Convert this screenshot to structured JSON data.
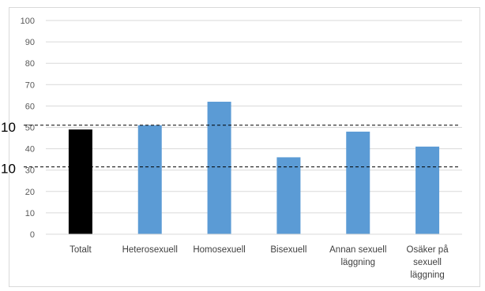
{
  "chart_data": {
    "type": "bar",
    "categories": [
      [
        "Totalt"
      ],
      [
        "Heterosexuell"
      ],
      [
        "Homosexuell"
      ],
      [
        "Bisexuell"
      ],
      [
        "Annan sexuell",
        "läggning"
      ],
      [
        "Osäker på",
        "sexuell",
        "läggning"
      ]
    ],
    "values": [
      49,
      51,
      62,
      36,
      48,
      41
    ],
    "bar_colors": [
      "#000000",
      "#5b9bd5",
      "#5b9bd5",
      "#5b9bd5",
      "#5b9bd5",
      "#5b9bd5"
    ],
    "ylim": [
      0,
      100
    ],
    "yticks": [
      0,
      10,
      20,
      30,
      40,
      50,
      60,
      70,
      80,
      90,
      100
    ],
    "grid": true,
    "grid_color": "#d9d9d9",
    "reference_lines": [
      {
        "label": "10",
        "value": 51
      },
      {
        "label": "10",
        "value": 31.5
      }
    ],
    "title": "",
    "xlabel": "",
    "ylabel": ""
  }
}
